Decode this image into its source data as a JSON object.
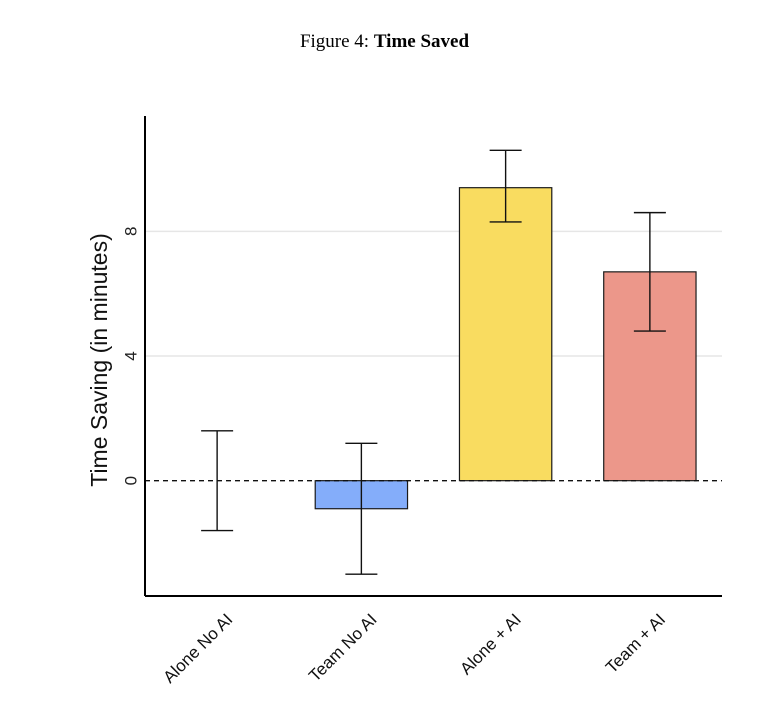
{
  "caption": {
    "prefix": "Figure 4:",
    "title": "Time Saved"
  },
  "chart_data": {
    "type": "bar",
    "title": "Time Saved",
    "xlabel": "",
    "ylabel": "Time Saving (in minutes)",
    "ylim": [
      -3.7,
      11.7
    ],
    "yticks": [
      0,
      4,
      8
    ],
    "grid": true,
    "reference_line": 0,
    "categories": [
      "Alone No AI",
      "Team No AI",
      "Alone + AI",
      "Team + AI"
    ],
    "values": [
      0,
      -0.9,
      9.4,
      6.7
    ],
    "error_low": [
      -1.6,
      -3.0,
      8.3,
      4.8
    ],
    "error_high": [
      1.6,
      1.2,
      10.6,
      8.6
    ],
    "colors": [
      "#ffffff",
      "#84adfa",
      "#f9dc60",
      "#ec978a"
    ]
  }
}
